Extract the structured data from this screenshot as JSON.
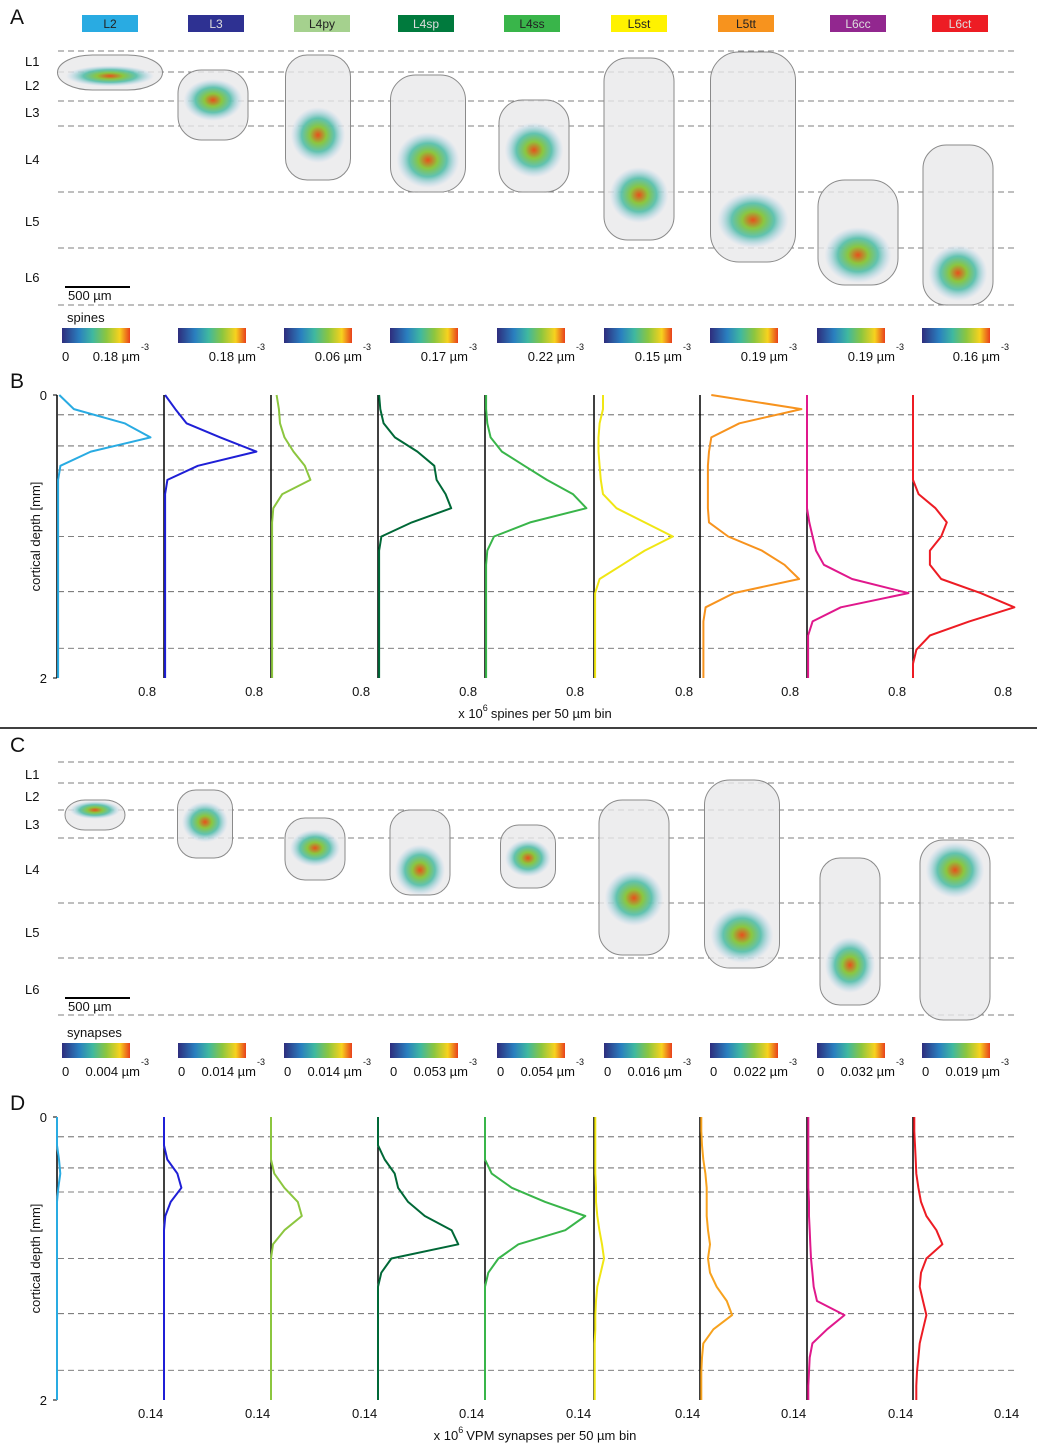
{
  "panel_labels": [
    "A",
    "B",
    "C",
    "D"
  ],
  "cell_types": [
    {
      "name": "L2",
      "color": "#29abe2"
    },
    {
      "name": "L3",
      "color": "#2e3192"
    },
    {
      "name": "L4py",
      "color": "#a5d18e"
    },
    {
      "name": "L4sp",
      "color": "#007a3d"
    },
    {
      "name": "L4ss",
      "color": "#39b54a"
    },
    {
      "name": "L5st",
      "color": "#fff200"
    },
    {
      "name": "L5tt",
      "color": "#f7931e"
    },
    {
      "name": "L6cc",
      "color": "#92278f"
    },
    {
      "name": "L6ct",
      "color": "#ed1c24"
    }
  ],
  "layers": [
    "L1",
    "L2",
    "L3",
    "L4",
    "L5",
    "L6"
  ],
  "scale_bar": "500 µm",
  "panel_a": {
    "colorbar_title": "spines",
    "colorbars": [
      {
        "min_label": "0",
        "max_label": "0.18 µm",
        "exponent": "-3"
      },
      {
        "max_label": "0.18 µm",
        "exponent": "-3"
      },
      {
        "max_label": "0.06 µm",
        "exponent": "-3"
      },
      {
        "max_label": "0.17 µm",
        "exponent": "-3"
      },
      {
        "max_label": "0.22 µm",
        "exponent": "-3"
      },
      {
        "max_label": "0.15 µm",
        "exponent": "-3"
      },
      {
        "max_label": "0.19 µm",
        "exponent": "-3"
      },
      {
        "max_label": "0.19 µm",
        "exponent": "-3"
      },
      {
        "max_label": "0.16 µm",
        "exponent": "-3"
      }
    ]
  },
  "panel_b": {
    "ylabel": "cortical depth [mm]",
    "xlabel": [
      "x 10",
      "6",
      "spines per 50 µm bin"
    ]
  },
  "panel_c": {
    "colorbar_title": "synapses",
    "colorbars": [
      {
        "min_label": "0",
        "max_label": "0.004 µm",
        "exponent": "-3"
      },
      {
        "min_label": "0",
        "max_label": "0.014 µm",
        "exponent": "-3"
      },
      {
        "min_label": "0",
        "max_label": "0.014 µm",
        "exponent": "-3"
      },
      {
        "min_label": "0",
        "max_label": "0.053 µm",
        "exponent": "-3"
      },
      {
        "min_label": "0",
        "max_label": "0.054 µm",
        "exponent": "-3"
      },
      {
        "min_label": "0",
        "max_label": "0.016 µm",
        "exponent": "-3"
      },
      {
        "min_label": "0",
        "max_label": "0.022 µm",
        "exponent": "-3"
      },
      {
        "min_label": "0",
        "max_label": "0.032 µm",
        "exponent": "-3"
      },
      {
        "min_label": "0",
        "max_label": "0.019 µm",
        "exponent": "-3"
      }
    ]
  },
  "panel_d": {
    "ylabel": "cortical depth [mm]",
    "xlabel": [
      "x 10",
      "6",
      "VPM synapses per 50 µm bin"
    ]
  },
  "layer_borders": [
    0.14,
    0.36,
    0.53,
    1.0,
    1.39,
    1.79
  ],
  "chart_data": [
    {
      "type": "line",
      "y": [
        0,
        0.1,
        0.2,
        0.3,
        0.4,
        0.5,
        0.6,
        0.7,
        0.8,
        0.9,
        1,
        1.1,
        1.2,
        1.3,
        1.4,
        1.5,
        1.6,
        1.7,
        1.8,
        1.9,
        2
      ],
      "ylim": [
        0,
        2
      ],
      "yticks": [
        0,
        2
      ],
      "xlim": [
        0,
        0.95
      ],
      "xticks": [
        0.8
      ],
      "series": [
        {
          "color": "#29abe2",
          "values": [
            0.02,
            0.15,
            0.6,
            0.83,
            0.3,
            0.03,
            0.01,
            0.01,
            0.01,
            0.01,
            0.01,
            0.01,
            0.01,
            0.01,
            0.01,
            0.01,
            0.01,
            0.01,
            0.01,
            0.01,
            0.01
          ]
        }
      ]
    },
    {
      "type": "line",
      "y": [
        0,
        0.1,
        0.2,
        0.3,
        0.4,
        0.5,
        0.6,
        0.7,
        0.8,
        0.9,
        1,
        1.1,
        1.2,
        1.3,
        1.4,
        1.5,
        1.6,
        1.7,
        1.8,
        1.9,
        2
      ],
      "ylim": [
        0,
        2
      ],
      "xlim": [
        0,
        0.95
      ],
      "xticks": [
        0.8
      ],
      "series": [
        {
          "color": "#1f1fd6",
          "values": [
            0.01,
            0.1,
            0.2,
            0.5,
            0.82,
            0.3,
            0.03,
            0.01,
            0.01,
            0.01,
            0.01,
            0.01,
            0.01,
            0.01,
            0.01,
            0.01,
            0.01,
            0.01,
            0.01,
            0.01,
            0.01
          ]
        }
      ]
    },
    {
      "type": "line",
      "y": [
        0,
        0.1,
        0.2,
        0.3,
        0.4,
        0.5,
        0.6,
        0.7,
        0.8,
        0.9,
        1,
        1.1,
        1.2,
        1.3,
        1.4,
        1.5,
        1.6,
        1.7,
        1.8,
        1.9,
        2
      ],
      "ylim": [
        0,
        2
      ],
      "xlim": [
        0,
        0.95
      ],
      "xticks": [
        0.8
      ],
      "series": [
        {
          "color": "#8cc63f",
          "values": [
            0.05,
            0.07,
            0.08,
            0.12,
            0.2,
            0.3,
            0.35,
            0.1,
            0.02,
            0.01,
            0.01,
            0.01,
            0.01,
            0.01,
            0.01,
            0.01,
            0.01,
            0.01,
            0.01,
            0.01,
            0.01
          ]
        }
      ]
    },
    {
      "type": "line",
      "y": [
        0,
        0.1,
        0.2,
        0.3,
        0.4,
        0.5,
        0.6,
        0.7,
        0.8,
        0.9,
        1,
        1.1,
        1.2,
        1.3,
        1.4,
        1.5,
        1.6,
        1.7,
        1.8,
        1.9,
        2
      ],
      "ylim": [
        0,
        2
      ],
      "xlim": [
        0,
        0.95
      ],
      "xticks": [
        0.8
      ],
      "series": [
        {
          "color": "#006837",
          "values": [
            0.01,
            0.02,
            0.05,
            0.15,
            0.35,
            0.5,
            0.52,
            0.6,
            0.65,
            0.3,
            0.03,
            0.01,
            0.01,
            0.01,
            0.01,
            0.01,
            0.01,
            0.01,
            0.01,
            0.01,
            0.01
          ]
        }
      ]
    },
    {
      "type": "line",
      "y": [
        0,
        0.1,
        0.2,
        0.3,
        0.4,
        0.5,
        0.6,
        0.7,
        0.8,
        0.9,
        1,
        1.1,
        1.2,
        1.3,
        1.4,
        1.5,
        1.6,
        1.7,
        1.8,
        1.9,
        2
      ],
      "ylim": [
        0,
        2
      ],
      "xlim": [
        0,
        0.95
      ],
      "xticks": [
        0.8
      ],
      "series": [
        {
          "color": "#39b54a",
          "values": [
            0.01,
            0.01,
            0.02,
            0.05,
            0.15,
            0.35,
            0.55,
            0.78,
            0.9,
            0.4,
            0.08,
            0.02,
            0.01,
            0.01,
            0.01,
            0.01,
            0.01,
            0.01,
            0.01,
            0.01,
            0.01
          ]
        }
      ]
    },
    {
      "type": "line",
      "y": [
        0,
        0.1,
        0.2,
        0.3,
        0.4,
        0.5,
        0.6,
        0.7,
        0.8,
        0.9,
        1,
        1.1,
        1.2,
        1.3,
        1.4,
        1.5,
        1.6,
        1.7,
        1.8,
        1.9,
        2
      ],
      "ylim": [
        0,
        2
      ],
      "xlim": [
        0,
        0.95
      ],
      "xticks": [
        0.8
      ],
      "series": [
        {
          "color": "#f0e614",
          "values": [
            0.08,
            0.08,
            0.05,
            0.04,
            0.04,
            0.05,
            0.06,
            0.08,
            0.2,
            0.45,
            0.7,
            0.45,
            0.25,
            0.05,
            0.01,
            0.01,
            0.01,
            0.01,
            0.01,
            0.01,
            0.01
          ]
        }
      ]
    },
    {
      "type": "line",
      "y": [
        0,
        0.1,
        0.2,
        0.3,
        0.4,
        0.5,
        0.6,
        0.7,
        0.8,
        0.9,
        1,
        1.1,
        1.2,
        1.3,
        1.4,
        1.5,
        1.6,
        1.7,
        1.8,
        1.9,
        2
      ],
      "ylim": [
        0,
        2
      ],
      "xlim": [
        0,
        0.95
      ],
      "xticks": [
        0.8
      ],
      "series": [
        {
          "color": "#f7931e",
          "values": [
            0.1,
            0.9,
            0.35,
            0.1,
            0.08,
            0.07,
            0.07,
            0.07,
            0.07,
            0.08,
            0.25,
            0.55,
            0.75,
            0.88,
            0.3,
            0.05,
            0.03,
            0.03,
            0.03,
            0.03,
            0.03
          ]
        }
      ]
    },
    {
      "type": "line",
      "y": [
        0,
        0.1,
        0.2,
        0.3,
        0.4,
        0.5,
        0.6,
        0.7,
        0.8,
        0.9,
        1,
        1.1,
        1.2,
        1.3,
        1.4,
        1.5,
        1.6,
        1.7,
        1.8,
        1.9,
        2
      ],
      "ylim": [
        0,
        2
      ],
      "xlim": [
        0,
        0.95
      ],
      "xticks": [
        0.8
      ],
      "series": [
        {
          "color": "#e0188c",
          "values": [
            0,
            0,
            0,
            0,
            0,
            0,
            0,
            0,
            0,
            0.02,
            0.05,
            0.08,
            0.15,
            0.4,
            0.9,
            0.3,
            0.05,
            0.01,
            0.01,
            0.01,
            0.01
          ]
        }
      ]
    },
    {
      "type": "line",
      "y": [
        0,
        0.1,
        0.2,
        0.3,
        0.4,
        0.5,
        0.6,
        0.7,
        0.8,
        0.9,
        1,
        1.1,
        1.2,
        1.3,
        1.4,
        1.5,
        1.6,
        1.7,
        1.8,
        1.9,
        2
      ],
      "ylim": [
        0,
        2
      ],
      "xlim": [
        0,
        0.95
      ],
      "xticks": [
        0.8
      ],
      "series": [
        {
          "color": "#ed1c24",
          "values": [
            0,
            0,
            0,
            0,
            0,
            0,
            0,
            0.05,
            0.2,
            0.3,
            0.25,
            0.15,
            0.15,
            0.25,
            0.6,
            0.9,
            0.5,
            0.15,
            0.03,
            0,
            0
          ]
        }
      ]
    },
    {
      "type": "line",
      "y": [
        0,
        0.1,
        0.2,
        0.3,
        0.4,
        0.5,
        0.6,
        0.7,
        0.8,
        0.9,
        1,
        1.1,
        1.2,
        1.3,
        1.4,
        1.5,
        1.6,
        1.7,
        1.8,
        1.9,
        2
      ],
      "ylim": [
        0,
        2
      ],
      "yticks": [
        0,
        2
      ],
      "xlim": [
        0,
        0.16
      ],
      "xticks": [
        0.14
      ],
      "series": [
        {
          "color": "#29abe2",
          "values": [
            0,
            0,
            0,
            0.003,
            0.005,
            0.002,
            0,
            0,
            0,
            0,
            0,
            0,
            0,
            0,
            0,
            0,
            0,
            0,
            0,
            0,
            0
          ]
        }
      ]
    },
    {
      "type": "line",
      "y": [
        0,
        0.1,
        0.2,
        0.3,
        0.4,
        0.5,
        0.6,
        0.7,
        0.8,
        0.9,
        1,
        1.1,
        1.2,
        1.3,
        1.4,
        1.5,
        1.6,
        1.7,
        1.8,
        1.9,
        2
      ],
      "ylim": [
        0,
        2
      ],
      "xlim": [
        0,
        0.16
      ],
      "xticks": [
        0.14
      ],
      "series": [
        {
          "color": "#1f1fd6",
          "values": [
            0,
            0,
            0,
            0.005,
            0.02,
            0.026,
            0.01,
            0.002,
            0,
            0,
            0,
            0,
            0,
            0,
            0,
            0,
            0,
            0,
            0,
            0,
            0
          ]
        }
      ]
    },
    {
      "type": "line",
      "y": [
        0,
        0.1,
        0.2,
        0.3,
        0.4,
        0.5,
        0.6,
        0.7,
        0.8,
        0.9,
        1,
        1.1,
        1.2,
        1.3,
        1.4,
        1.5,
        1.6,
        1.7,
        1.8,
        1.9,
        2
      ],
      "ylim": [
        0,
        2
      ],
      "xlim": [
        0,
        0.16
      ],
      "xticks": [
        0.14
      ],
      "series": [
        {
          "color": "#8cc63f",
          "values": [
            0,
            0,
            0,
            0,
            0.005,
            0.02,
            0.04,
            0.046,
            0.02,
            0.003,
            0,
            0,
            0,
            0,
            0,
            0,
            0,
            0,
            0,
            0,
            0
          ]
        }
      ]
    },
    {
      "type": "line",
      "y": [
        0,
        0.1,
        0.2,
        0.3,
        0.4,
        0.5,
        0.6,
        0.7,
        0.8,
        0.9,
        1,
        1.1,
        1.2,
        1.3,
        1.4,
        1.5,
        1.6,
        1.7,
        1.8,
        1.9,
        2
      ],
      "ylim": [
        0,
        2
      ],
      "xlim": [
        0,
        0.16
      ],
      "xticks": [
        0.14
      ],
      "series": [
        {
          "color": "#006837",
          "values": [
            0,
            0,
            0,
            0.01,
            0.025,
            0.03,
            0.045,
            0.07,
            0.11,
            0.12,
            0.02,
            0.005,
            0,
            0,
            0,
            0,
            0,
            0,
            0,
            0,
            0
          ]
        }
      ]
    },
    {
      "type": "line",
      "y": [
        0,
        0.1,
        0.2,
        0.3,
        0.4,
        0.5,
        0.6,
        0.7,
        0.8,
        0.9,
        1,
        1.1,
        1.2,
        1.3,
        1.4,
        1.5,
        1.6,
        1.7,
        1.8,
        1.9,
        2
      ],
      "ylim": [
        0,
        2
      ],
      "xlim": [
        0,
        0.16
      ],
      "xticks": [
        0.14
      ],
      "series": [
        {
          "color": "#39b54a",
          "values": [
            0,
            0,
            0,
            0,
            0.01,
            0.04,
            0.09,
            0.15,
            0.12,
            0.05,
            0.02,
            0.005,
            0,
            0,
            0,
            0,
            0,
            0,
            0,
            0,
            0
          ]
        }
      ]
    },
    {
      "type": "line",
      "y": [
        0,
        0.1,
        0.2,
        0.3,
        0.4,
        0.5,
        0.6,
        0.7,
        0.8,
        0.9,
        1,
        1.1,
        1.2,
        1.3,
        1.4,
        1.5,
        1.6,
        1.7,
        1.8,
        1.9,
        2
      ],
      "ylim": [
        0,
        2
      ],
      "xlim": [
        0,
        0.16
      ],
      "xticks": [
        0.14
      ],
      "series": [
        {
          "color": "#f0e614",
          "values": [
            0.002,
            0.002,
            0.002,
            0.002,
            0.002,
            0.003,
            0.003,
            0.005,
            0.008,
            0.012,
            0.015,
            0.01,
            0.005,
            0.003,
            0.002,
            0.002,
            0.001,
            0.001,
            0.001,
            0.001,
            0.001
          ]
        }
      ]
    },
    {
      "type": "line",
      "y": [
        0,
        0.1,
        0.2,
        0.3,
        0.4,
        0.5,
        0.6,
        0.7,
        0.8,
        0.9,
        1,
        1.1,
        1.2,
        1.3,
        1.4,
        1.5,
        1.6,
        1.7,
        1.8,
        1.9,
        2
      ],
      "ylim": [
        0,
        2
      ],
      "xlim": [
        0,
        0.16
      ],
      "xticks": [
        0.14
      ],
      "series": [
        {
          "color": "#f7a21e",
          "values": [
            0.002,
            0.002,
            0.003,
            0.005,
            0.008,
            0.01,
            0.01,
            0.01,
            0.012,
            0.015,
            0.012,
            0.015,
            0.025,
            0.04,
            0.048,
            0.02,
            0.005,
            0.003,
            0.002,
            0.002,
            0.002
          ]
        }
      ]
    },
    {
      "type": "line",
      "y": [
        0,
        0.1,
        0.2,
        0.3,
        0.4,
        0.5,
        0.6,
        0.7,
        0.8,
        0.9,
        1,
        1.1,
        1.2,
        1.3,
        1.4,
        1.5,
        1.6,
        1.7,
        1.8,
        1.9,
        2
      ],
      "ylim": [
        0,
        2
      ],
      "xlim": [
        0,
        0.16
      ],
      "xticks": [
        0.14
      ],
      "series": [
        {
          "color": "#e0188c",
          "values": [
            0.002,
            0.002,
            0.002,
            0.002,
            0.002,
            0.002,
            0.003,
            0.003,
            0.004,
            0.005,
            0.006,
            0.008,
            0.01,
            0.015,
            0.056,
            0.03,
            0.008,
            0.004,
            0.003,
            0.002,
            0.002
          ]
        }
      ]
    },
    {
      "type": "line",
      "y": [
        0,
        0.1,
        0.2,
        0.3,
        0.4,
        0.5,
        0.6,
        0.7,
        0.8,
        0.9,
        1,
        1.1,
        1.2,
        1.3,
        1.4,
        1.5,
        1.6,
        1.7,
        1.8,
        1.9,
        2
      ],
      "ylim": [
        0,
        2
      ],
      "xlim": [
        0,
        0.16
      ],
      "xticks": [
        0.14
      ],
      "series": [
        {
          "color": "#ed1c24",
          "values": [
            0.002,
            0.002,
            0.003,
            0.004,
            0.005,
            0.008,
            0.012,
            0.02,
            0.035,
            0.044,
            0.02,
            0.012,
            0.01,
            0.015,
            0.02,
            0.015,
            0.01,
            0.008,
            0.006,
            0.005,
            0.005
          ]
        }
      ]
    }
  ]
}
